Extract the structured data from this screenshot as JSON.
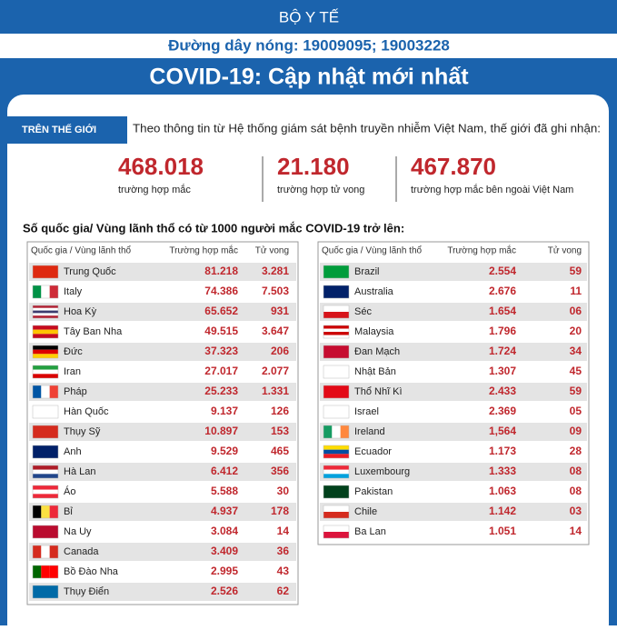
{
  "header": {
    "agency": "BỘ Y TẾ",
    "hotline": "Đường dây nóng: 19009095; 19003228",
    "title": "COVID-19: Cập nhật mới nhất"
  },
  "world": {
    "tab": "TRÊN THẾ GIỚI",
    "intro": "Theo thông tin từ Hệ thống giám sát bệnh truyền nhiễm Việt Nam, thế giới đã ghi nhận:",
    "stats": [
      {
        "value": "468.018",
        "label": "trường hợp mắc"
      },
      {
        "value": "21.180",
        "label": "trường hợp tử vong"
      },
      {
        "value": "467.870",
        "label": "trường hợp  mắc bên ngoài Việt Nam"
      }
    ]
  },
  "tables": {
    "title": "Số quốc gia/ Vùng lãnh thổ có từ 1000 người  mắc COVID-19 trở lên:",
    "columns": [
      "Quốc gia / Vùng lãnh thổ",
      "Trường hợp mắc",
      "Tử vong"
    ],
    "left": [
      [
        "Trung Quốc",
        "81.218",
        "3.281"
      ],
      [
        "Italy",
        "74.386",
        "7.503"
      ],
      [
        "Hoa Kỳ",
        "65.652",
        "931"
      ],
      [
        "Tây Ban Nha",
        "49.515",
        "3.647"
      ],
      [
        "Đức",
        "37.323",
        "206"
      ],
      [
        "Iran",
        "27.017",
        "2.077"
      ],
      [
        "Pháp",
        "25.233",
        "1.331"
      ],
      [
        "Hàn Quốc",
        "9.137",
        "126"
      ],
      [
        "Thụy Sỹ",
        "10.897",
        "153"
      ],
      [
        "Anh",
        "9.529",
        "465"
      ],
      [
        "Hà Lan",
        "6.412",
        "356"
      ],
      [
        "Áo",
        "5.588",
        "30"
      ],
      [
        "Bỉ",
        "4.937",
        "178"
      ],
      [
        "Na Uy",
        "3.084",
        "14"
      ],
      [
        "Canada",
        "3.409",
        "36"
      ],
      [
        "Bồ Đào Nha",
        "2.995",
        "43"
      ],
      [
        "Thụy Điển",
        "2.526",
        "62"
      ]
    ],
    "right": [
      [
        "Brazil",
        "2.554",
        "59"
      ],
      [
        "Australia",
        "2.676",
        "11"
      ],
      [
        "Séc",
        "1.654",
        "06"
      ],
      [
        "Malaysia",
        "1.796",
        "20"
      ],
      [
        "Đan Mạch",
        "1.724",
        "34"
      ],
      [
        "Nhật Bản",
        "1.307",
        "45"
      ],
      [
        "Thổ Nhĩ Kì",
        "2.433",
        "59"
      ],
      [
        "Israel",
        "2.369",
        "05"
      ],
      [
        "Ireland",
        "1,564",
        "09"
      ],
      [
        "Ecuador",
        "1.173",
        "28"
      ],
      [
        "Luxembourg",
        "1.333",
        "08"
      ],
      [
        "Pakistan",
        "1.063",
        "08"
      ],
      [
        "Chile",
        "1.142",
        "03"
      ],
      [
        "Ba Lan",
        "1.051",
        "14"
      ]
    ]
  }
}
